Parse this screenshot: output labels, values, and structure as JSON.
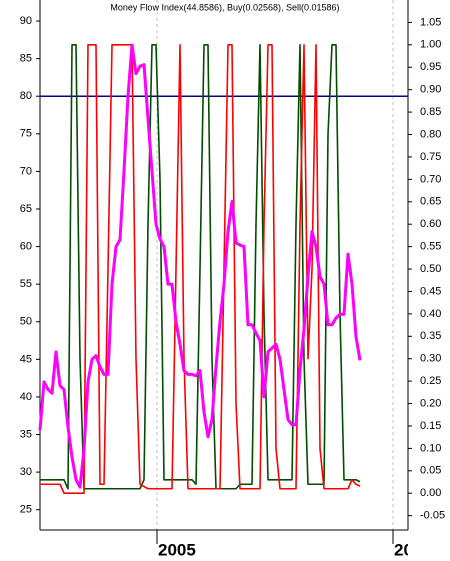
{
  "chart_data": {
    "type": "line",
    "title": "Money Flow Index(44.8586), Buy(0.02568), Sell(0.01586)",
    "x": [
      0,
      1,
      2,
      3,
      4,
      5,
      6,
      7,
      8,
      9,
      10,
      11,
      12,
      13,
      14,
      15,
      16,
      17,
      18,
      19,
      20,
      21,
      22,
      23,
      24,
      25,
      26,
      27,
      28,
      29,
      30,
      31,
      32,
      33,
      34,
      35,
      36,
      37,
      38,
      39,
      40,
      41,
      42,
      43,
      44,
      45,
      46,
      47,
      48,
      49,
      50,
      51,
      52,
      53,
      54,
      55,
      56,
      57,
      58,
      59,
      60,
      61,
      62,
      63,
      64,
      65,
      66,
      67,
      68,
      69,
      70,
      71,
      72,
      73,
      74,
      75,
      76,
      77,
      78,
      79,
      80
    ],
    "series": [
      {
        "color": "#ff00ff",
        "axis": "y",
        "values": [
          35.6,
          42,
          41,
          40.5,
          46,
          41.5,
          41,
          36,
          32,
          29,
          28,
          33,
          42,
          45,
          45.5,
          44,
          43,
          43,
          55,
          60,
          60.9,
          70,
          80,
          86.8,
          83,
          84,
          84.2,
          77,
          70,
          63,
          61,
          60,
          55,
          55,
          50,
          47,
          43.5,
          43,
          43,
          42.8,
          43.5,
          38,
          34.7,
          37,
          44,
          50,
          55,
          62,
          66,
          60.5,
          60.2,
          60,
          49.6,
          49.6,
          48.5,
          47.5,
          40,
          46,
          46.5,
          47,
          45,
          41,
          37,
          36.3,
          36.3,
          43.6,
          49,
          56,
          62,
          60,
          56,
          55,
          49.6,
          49.6,
          50.5,
          51,
          51,
          59,
          55,
          48,
          44.8586
        ]
      },
      {
        "color": "#004d00",
        "axis": "y2",
        "values": [
          0.03,
          0.03,
          0.03,
          0.03,
          0.03,
          0.03,
          0.03,
          0.01,
          1,
          1,
          0.3,
          0.01,
          0.01,
          0.01,
          0.01,
          0.01,
          0.01,
          0.01,
          0.01,
          0.01,
          0.01,
          0.01,
          0.01,
          0.01,
          0.01,
          0.01,
          0.03,
          0.6,
          1,
          1,
          0.7,
          0.03,
          0.03,
          0.03,
          0.03,
          0.03,
          0.03,
          0.03,
          0.03,
          0.02,
          0.5,
          1,
          1,
          0.3,
          0.01,
          0.01,
          0.01,
          0.01,
          0.01,
          0.01,
          0.02,
          0.02,
          0.02,
          0.02,
          0.6,
          1,
          0.4,
          0.03,
          0.03,
          0.03,
          0.03,
          0.03,
          0.03,
          0.03,
          0.6,
          1,
          0.3,
          0.02,
          0.02,
          0.02,
          0.02,
          0.02,
          0.8,
          1,
          1,
          0.4,
          0.03,
          0.03,
          0.03,
          0.03,
          0.02568
        ]
      },
      {
        "color": "#ff0000",
        "axis": "y2",
        "values": [
          0.02,
          0.02,
          0.02,
          0.02,
          0.02,
          0.02,
          0,
          0,
          0,
          0,
          0,
          0,
          1,
          1,
          1,
          0.02,
          0.02,
          0.5,
          1,
          1,
          1,
          1,
          1,
          1,
          0.3,
          0.02,
          0.015,
          0.01,
          0.01,
          0.01,
          0.01,
          0.01,
          0.01,
          0.01,
          0.5,
          1,
          0.3,
          0.01,
          0.01,
          0.01,
          0.01,
          0.01,
          0.01,
          0.01,
          0.01,
          0.01,
          0.5,
          1,
          1,
          0.2,
          0.01,
          0.01,
          0.01,
          0.01,
          0.01,
          0.01,
          0.6,
          1,
          1,
          0.1,
          0.01,
          0.01,
          0.01,
          0.01,
          0.01,
          0.6,
          1,
          0.3,
          0.5,
          1,
          0.1,
          0.01,
          0.01,
          0.01,
          0.01,
          0.01,
          0.01,
          0.01,
          0.03,
          0.02,
          0.01586
        ]
      }
    ],
    "xlim": [
      0,
      92
    ],
    "xticks": [
      {
        "value": 29.25,
        "label": "2005"
      },
      {
        "value": 88.25,
        "label": "20"
      }
    ],
    "ylim": [
      22.3,
      92.8
    ],
    "yticks": [
      25,
      30,
      35,
      40,
      45,
      50,
      55,
      60,
      65,
      70,
      75,
      80,
      85,
      90
    ],
    "y2lim": [
      -0.082,
      1.1
    ],
    "y2ticks": [
      -0.05,
      {
        "value": 0,
        "label": "0.00"
      },
      0.05,
      {
        "value": 0.1,
        "label": "0.10"
      },
      0.15,
      {
        "value": 0.2,
        "label": "0.20"
      },
      0.25,
      {
        "value": 0.3,
        "label": "0.30"
      },
      0.35,
      {
        "value": 0.4,
        "label": "0.40"
      },
      0.45,
      {
        "value": 0.5,
        "label": "0.50"
      },
      0.55,
      {
        "value": 0.6,
        "label": "0.60"
      },
      0.65,
      {
        "value": 0.7,
        "label": "0.70"
      },
      0.75,
      {
        "value": 0.8,
        "label": "0.80"
      },
      0.85,
      {
        "value": 0.9,
        "label": "0.90"
      },
      0.95,
      {
        "value": 1,
        "label": "1.00"
      },
      1.05
    ],
    "reference_line": {
      "value": 80,
      "color": "#00008b"
    },
    "xgrid": true
  }
}
